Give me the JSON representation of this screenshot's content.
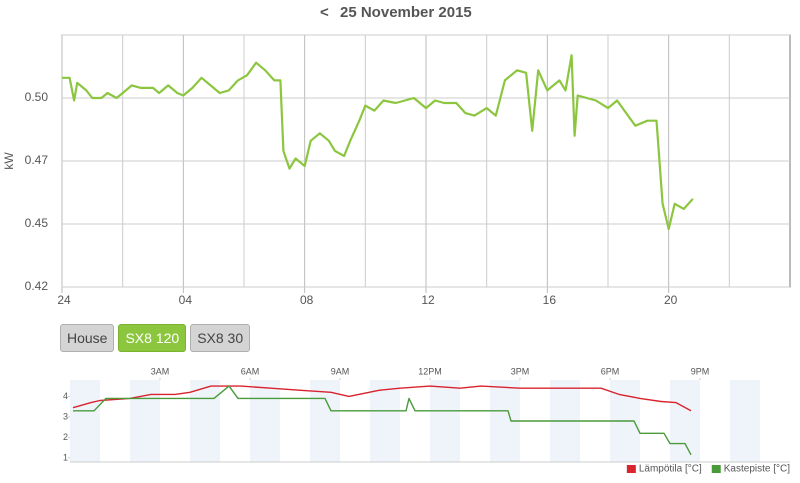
{
  "header": {
    "back": "<",
    "date": "25 November 2015"
  },
  "buttons": [
    {
      "label": "House",
      "active": false
    },
    {
      "label": "SX8 120",
      "active": true
    },
    {
      "label": "SX8 30",
      "active": false
    }
  ],
  "chart_data": [
    {
      "type": "line",
      "ylabel": "kW",
      "grid": true,
      "xlim": [
        0,
        24
      ],
      "ylim": [
        0.425,
        0.525
      ],
      "xticks": [
        {
          "value": 0,
          "label": "24"
        },
        {
          "value": 4,
          "label": "04"
        },
        {
          "value": 8,
          "label": "08"
        },
        12,
        16,
        20
      ],
      "xminor": [
        2,
        6,
        10,
        14,
        18,
        22
      ],
      "yticks": [
        {
          "value": 0.425,
          "label": "0.42"
        },
        0.45,
        {
          "value": 0.475,
          "label": "0.47"
        },
        {
          "value": 0.5,
          "label": "0.50"
        },
        0.525
      ],
      "series": [
        {
          "color": "#8cc63f",
          "x": [
            0,
            0.25,
            0.4,
            0.5,
            0.8,
            1.0,
            1.3,
            1.5,
            1.8,
            2.0,
            2.3,
            2.6,
            3.0,
            3.2,
            3.5,
            3.8,
            4.0,
            4.3,
            4.6,
            4.9,
            5.2,
            5.5,
            5.8,
            6.1,
            6.4,
            6.7,
            7.0,
            7.2,
            7.3,
            7.5,
            7.7,
            8.0,
            8.2,
            8.5,
            8.8,
            9.0,
            9.3,
            9.5,
            9.8,
            10.0,
            10.3,
            10.6,
            11.0,
            11.3,
            11.6,
            12.0,
            12.3,
            12.6,
            13.0,
            13.3,
            13.6,
            14.0,
            14.3,
            14.6,
            15.0,
            15.3,
            15.5,
            15.7,
            16.0,
            16.2,
            16.4,
            16.6,
            16.8,
            16.9,
            17.0,
            17.3,
            17.6,
            18.0,
            18.3,
            18.6,
            18.9,
            19.3,
            19.6,
            19.8,
            20.0,
            20.2,
            20.5,
            20.8
          ],
          "values": [
            0.508,
            0.508,
            0.499,
            0.506,
            0.503,
            0.5,
            0.5,
            0.502,
            0.5,
            0.502,
            0.505,
            0.504,
            0.504,
            0.502,
            0.505,
            0.502,
            0.501,
            0.504,
            0.508,
            0.505,
            0.502,
            0.503,
            0.507,
            0.509,
            0.514,
            0.511,
            0.507,
            0.507,
            0.479,
            0.472,
            0.476,
            0.473,
            0.483,
            0.486,
            0.483,
            0.479,
            0.477,
            0.483,
            0.491,
            0.497,
            0.495,
            0.499,
            0.498,
            0.499,
            0.5,
            0.496,
            0.499,
            0.498,
            0.498,
            0.494,
            0.493,
            0.496,
            0.493,
            0.507,
            0.511,
            0.51,
            0.487,
            0.511,
            0.503,
            0.505,
            0.507,
            0.503,
            0.517,
            0.485,
            0.501,
            0.5,
            0.499,
            0.496,
            0.499,
            0.494,
            0.489,
            0.491,
            0.491,
            0.458,
            0.448,
            0.458,
            0.456,
            0.46
          ]
        }
      ]
    },
    {
      "type": "line",
      "legend": "bottom-right",
      "xlim": [
        0,
        24
      ],
      "ylim": [
        0.8,
        4.8
      ],
      "xticks": [
        {
          "value": 3,
          "label": "3AM"
        },
        {
          "value": 6,
          "label": "6AM"
        },
        {
          "value": 9,
          "label": "9AM"
        },
        {
          "value": 12,
          "label": "12PM"
        },
        {
          "value": 15,
          "label": "3PM"
        },
        {
          "value": 18,
          "label": "6PM"
        },
        {
          "value": 21,
          "label": "9PM"
        }
      ],
      "yticks": [
        1,
        2,
        3,
        4
      ],
      "series": [
        {
          "name": "Lämpötila [°C]",
          "color": "#d9232e",
          "x": [
            0.1,
            0.7,
            1.0,
            2.0,
            2.7,
            3.5,
            4.0,
            4.7,
            5.7,
            6.7,
            7.7,
            8.7,
            9.3,
            10.3,
            11.0,
            12.0,
            13.0,
            13.7,
            15.0,
            16.7,
            17.7,
            18.3,
            19.0,
            19.7,
            20.2,
            20.7
          ],
          "values": [
            3.45,
            3.7,
            3.8,
            3.9,
            4.1,
            4.1,
            4.2,
            4.5,
            4.5,
            4.4,
            4.3,
            4.2,
            4.0,
            4.3,
            4.4,
            4.5,
            4.4,
            4.5,
            4.4,
            4.4,
            4.4,
            4.1,
            3.9,
            3.75,
            3.7,
            3.3
          ]
        },
        {
          "name": "Kastepiste [°C]",
          "color": "#4a9a3a",
          "x": [
            0.1,
            0.8,
            1.2,
            4.8,
            5.3,
            5.6,
            8.5,
            8.7,
            11.2,
            11.3,
            11.5,
            14.6,
            14.7,
            18.8,
            19.0,
            19.8,
            20.0,
            20.5,
            20.7
          ],
          "values": [
            3.3,
            3.3,
            3.9,
            3.9,
            4.5,
            3.9,
            3.9,
            3.3,
            3.3,
            3.9,
            3.3,
            3.3,
            2.8,
            2.8,
            2.2,
            2.2,
            1.7,
            1.7,
            1.15
          ]
        }
      ]
    }
  ]
}
